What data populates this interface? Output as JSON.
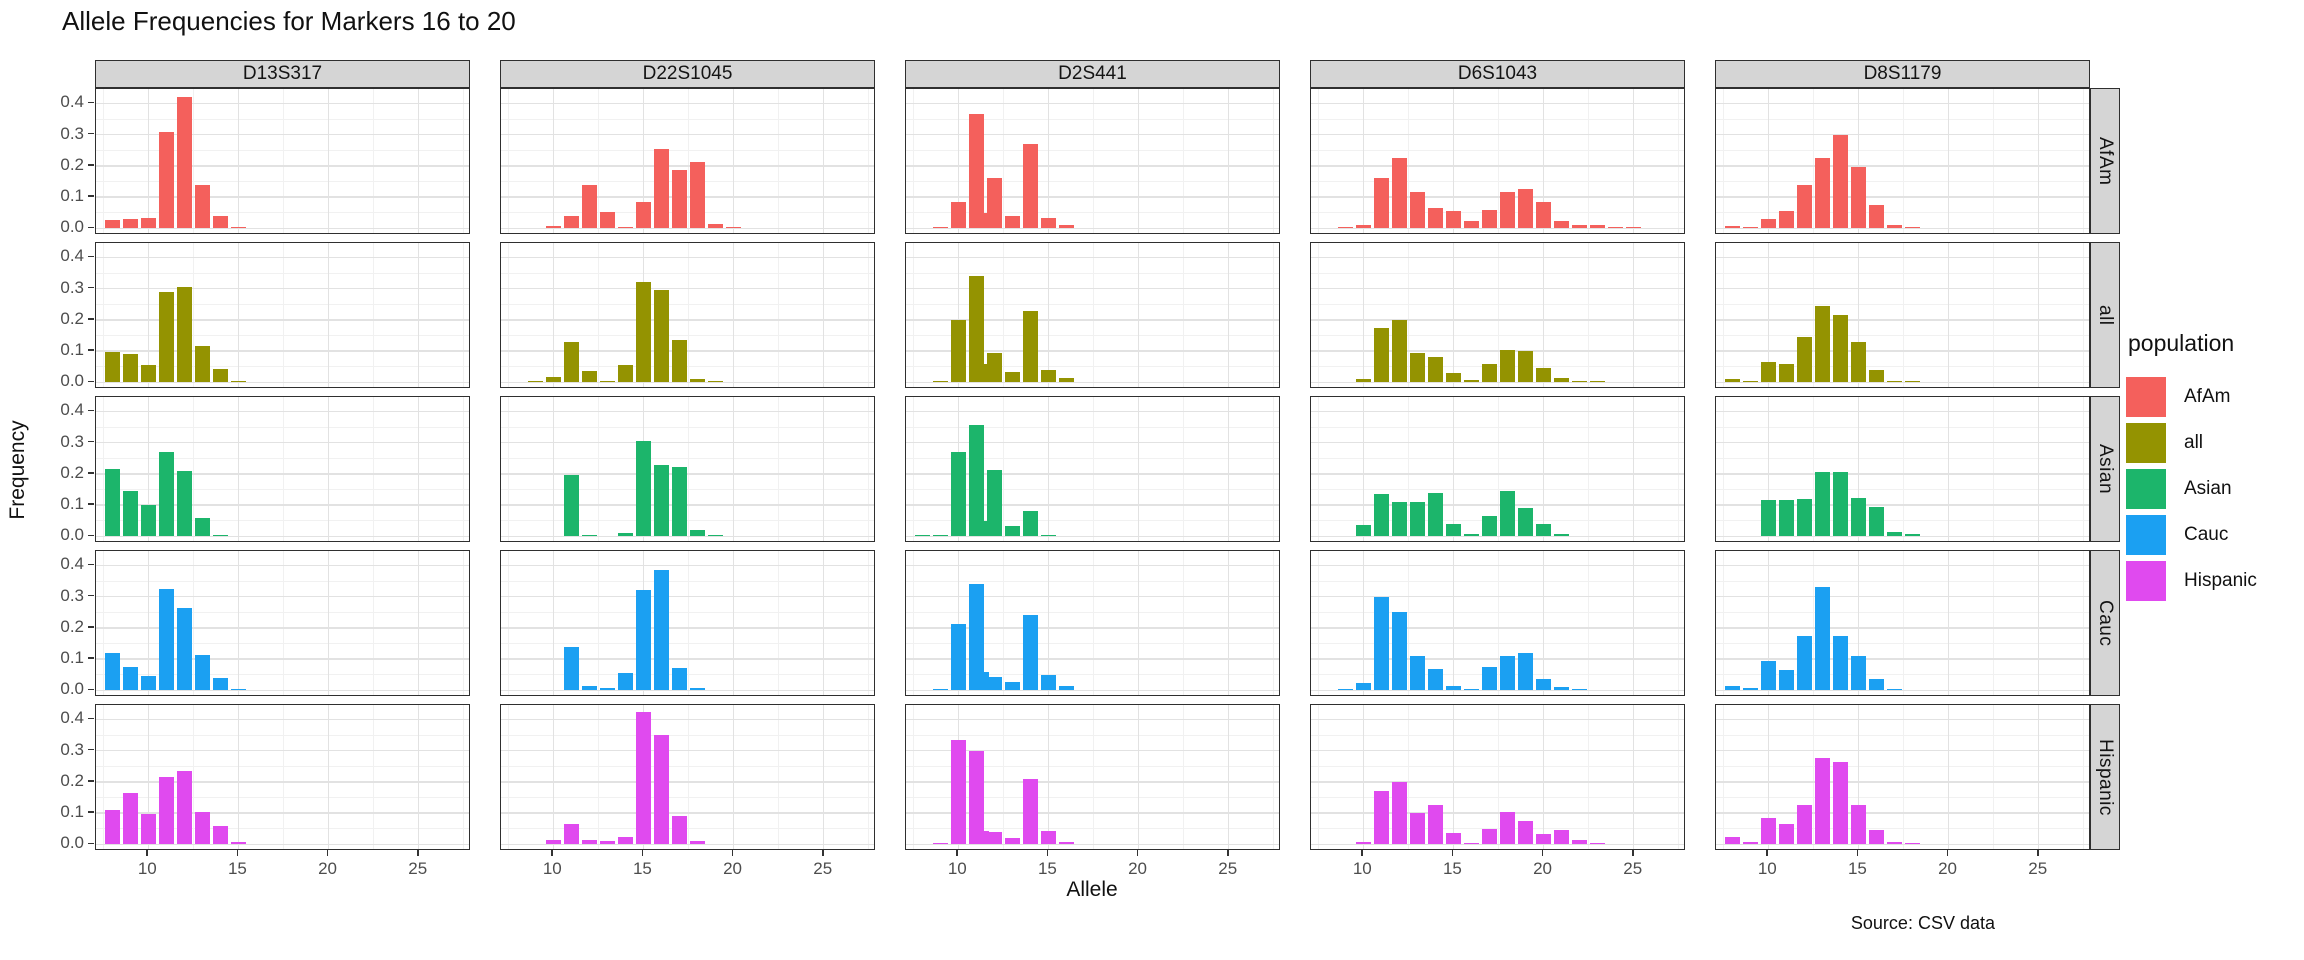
{
  "title": "Allele Frequencies for Markers 16 to 20",
  "caption": "Source: CSV data",
  "axes": {
    "x_label": "Allele",
    "y_label": "Frequency",
    "x_tick_labels": [
      "10",
      "15",
      "20",
      "25"
    ],
    "y_tick_labels": [
      "0.0",
      "0.1",
      "0.2",
      "0.3",
      "0.4"
    ]
  },
  "legend": {
    "title": "population",
    "entries": [
      {
        "label": "AfAm",
        "color": "#f4605c"
      },
      {
        "label": "all",
        "color": "#949301"
      },
      {
        "label": "Asian",
        "color": "#1cb56b"
      },
      {
        "label": "Cauc",
        "color": "#1ba0f2"
      },
      {
        "label": "Hispanic",
        "color": "#e04aef"
      }
    ]
  },
  "chart_data": {
    "type": "bar",
    "title": "Allele Frequencies for Markers 16 to 20",
    "xlabel": "Allele",
    "ylabel": "Frequency",
    "facet_columns": [
      "D13S317",
      "D22S1045",
      "D2S441",
      "D6S1043",
      "D8S1179"
    ],
    "facet_rows": [
      "AfAm",
      "all",
      "Asian",
      "Cauc",
      "Hispanic"
    ],
    "x_ticks": [
      10,
      15,
      20,
      25
    ],
    "x_minor_ticks": [
      7.5,
      12.5,
      17.5,
      22.5,
      27.5
    ],
    "x_domain": [
      7.1,
      27.9
    ],
    "y_ticks": [
      0,
      0.1,
      0.2,
      0.3,
      0.4
    ],
    "y_minor_ticks": [
      0.05,
      0.15,
      0.25,
      0.35,
      0.45
    ],
    "y_domain": [
      -0.021,
      0.446
    ],
    "grid": "major-and-minor",
    "legend_position": "right",
    "bar_width": 0.85,
    "facets": {
      "D13S317": {
        "AfAm": {
          "x": [
            8,
            9,
            10,
            11,
            12,
            13,
            14,
            15
          ],
          "freq": [
            0.026,
            0.03,
            0.033,
            0.31,
            0.42,
            0.14,
            0.041,
            0.002
          ]
        },
        "all": {
          "x": [
            8,
            9,
            10,
            11,
            12,
            13,
            14,
            15
          ],
          "freq": [
            0.097,
            0.09,
            0.056,
            0.29,
            0.305,
            0.115,
            0.042,
            0.003
          ]
        },
        "Asian": {
          "x": [
            8,
            9,
            10,
            11,
            12,
            13,
            14
          ],
          "freq": [
            0.215,
            0.145,
            0.1,
            0.27,
            0.21,
            0.058,
            0.002
          ]
        },
        "Cauc": {
          "x": [
            8,
            9,
            10,
            11,
            12,
            13,
            14,
            15
          ],
          "freq": [
            0.12,
            0.075,
            0.045,
            0.325,
            0.265,
            0.112,
            0.04,
            0.003
          ]
        },
        "Hispanic": {
          "x": [
            8,
            9,
            10,
            11,
            12,
            13,
            14,
            15
          ],
          "freq": [
            0.11,
            0.165,
            0.098,
            0.215,
            0.235,
            0.105,
            0.06,
            0.008
          ]
        }
      },
      "D22S1045": {
        "AfAm": {
          "x": [
            10,
            11,
            12,
            13,
            14,
            15,
            16,
            17,
            18,
            19,
            20
          ],
          "freq": [
            0.009,
            0.04,
            0.14,
            0.052,
            0.006,
            0.084,
            0.254,
            0.188,
            0.211,
            0.015,
            0.003
          ]
        },
        "all": {
          "x": [
            9,
            10,
            11,
            12,
            13,
            14,
            15,
            16,
            17,
            18,
            19
          ],
          "freq": [
            0.004,
            0.018,
            0.13,
            0.035,
            0.006,
            0.055,
            0.32,
            0.295,
            0.135,
            0.012,
            0.005
          ]
        },
        "Asian": {
          "x": [
            11,
            12,
            14,
            15,
            16,
            17,
            18,
            19
          ],
          "freq": [
            0.198,
            0.006,
            0.012,
            0.305,
            0.23,
            0.221,
            0.021,
            0.006
          ]
        },
        "Cauc": {
          "x": [
            11,
            12,
            13,
            14,
            15,
            16,
            17,
            18
          ],
          "freq": [
            0.139,
            0.015,
            0.008,
            0.055,
            0.32,
            0.385,
            0.073,
            0.008
          ]
        },
        "Hispanic": {
          "x": [
            10,
            11,
            12,
            13,
            14,
            15,
            16,
            17,
            18
          ],
          "freq": [
            0.015,
            0.066,
            0.013,
            0.01,
            0.025,
            0.425,
            0.35,
            0.09,
            0.01
          ]
        }
      },
      "D2S441": {
        "AfAm": {
          "x": [
            9,
            10,
            11,
            11.3,
            12,
            13,
            14,
            15,
            16
          ],
          "freq": [
            0.005,
            0.085,
            0.365,
            0.05,
            0.16,
            0.04,
            0.27,
            0.032,
            0.012
          ]
        },
        "all": {
          "x": [
            9,
            10,
            11,
            11.3,
            12,
            13,
            14,
            15,
            16
          ],
          "freq": [
            0.004,
            0.2,
            0.34,
            0.06,
            0.095,
            0.033,
            0.228,
            0.04,
            0.014
          ]
        },
        "Asian": {
          "x": [
            8,
            9,
            10,
            11,
            11.3,
            12,
            13,
            14,
            15
          ],
          "freq": [
            0.004,
            0.006,
            0.27,
            0.355,
            0.048,
            0.214,
            0.033,
            0.082,
            0.005
          ]
        },
        "Cauc": {
          "x": [
            9,
            10,
            11,
            11.3,
            12,
            13,
            14,
            15,
            16
          ],
          "freq": [
            0.003,
            0.212,
            0.342,
            0.058,
            0.043,
            0.027,
            0.24,
            0.05,
            0.013
          ]
        },
        "Hispanic": {
          "x": [
            9,
            10,
            11,
            11.3,
            12,
            13,
            14,
            15,
            16
          ],
          "freq": [
            0.003,
            0.335,
            0.3,
            0.042,
            0.041,
            0.019,
            0.21,
            0.044,
            0.008
          ]
        }
      },
      "D6S1043": {
        "AfAm": {
          "x": [
            9,
            10,
            11,
            12,
            13,
            14,
            15,
            16,
            17,
            18,
            19,
            20,
            21,
            22,
            23,
            24,
            25
          ],
          "freq": [
            0.005,
            0.01,
            0.16,
            0.225,
            0.115,
            0.065,
            0.055,
            0.025,
            0.06,
            0.115,
            0.125,
            0.085,
            0.025,
            0.012,
            0.01,
            0.005,
            0.004
          ]
        },
        "all": {
          "x": [
            10,
            11,
            12,
            13,
            14,
            15,
            16,
            17,
            18,
            19,
            20,
            21,
            22,
            23
          ],
          "freq": [
            0.012,
            0.175,
            0.2,
            0.095,
            0.08,
            0.03,
            0.008,
            0.06,
            0.105,
            0.1,
            0.045,
            0.013,
            0.005,
            0.003
          ]
        },
        "Asian": {
          "x": [
            10,
            11,
            12,
            13,
            14,
            15,
            16,
            17,
            18,
            19,
            20,
            21
          ],
          "freq": [
            0.035,
            0.135,
            0.11,
            0.11,
            0.14,
            0.04,
            0.008,
            0.065,
            0.145,
            0.09,
            0.04,
            0.008
          ]
        },
        "Cauc": {
          "x": [
            9,
            10,
            11,
            12,
            13,
            14,
            15,
            16,
            17,
            18,
            19,
            20,
            21,
            22
          ],
          "freq": [
            0.005,
            0.025,
            0.3,
            0.25,
            0.11,
            0.07,
            0.015,
            0.005,
            0.075,
            0.11,
            0.12,
            0.035,
            0.012,
            0.005
          ]
        },
        "Hispanic": {
          "x": [
            10,
            11,
            12,
            13,
            14,
            15,
            16,
            17,
            18,
            19,
            20,
            21,
            22,
            23
          ],
          "freq": [
            0.008,
            0.17,
            0.2,
            0.1,
            0.125,
            0.035,
            0.005,
            0.05,
            0.105,
            0.075,
            0.033,
            0.045,
            0.015,
            0.005
          ]
        }
      },
      "D8S1179": {
        "AfAm": {
          "x": [
            8,
            9,
            10,
            11,
            12,
            13,
            14,
            15,
            16,
            17,
            18
          ],
          "freq": [
            0.008,
            0.005,
            0.03,
            0.055,
            0.14,
            0.225,
            0.3,
            0.195,
            0.075,
            0.012,
            0.003
          ]
        },
        "all": {
          "x": [
            8,
            9,
            10,
            11,
            12,
            13,
            14,
            15,
            16,
            17,
            18
          ],
          "freq": [
            0.012,
            0.004,
            0.065,
            0.058,
            0.145,
            0.245,
            0.215,
            0.13,
            0.04,
            0.006,
            0.003
          ]
        },
        "Asian": {
          "x": [
            10,
            11,
            12,
            13,
            14,
            15,
            16,
            17,
            18
          ],
          "freq": [
            0.117,
            0.117,
            0.119,
            0.205,
            0.205,
            0.123,
            0.094,
            0.015,
            0.007
          ]
        },
        "Cauc": {
          "x": [
            8,
            9,
            10,
            11,
            12,
            13,
            14,
            15,
            16,
            17
          ],
          "freq": [
            0.015,
            0.008,
            0.095,
            0.065,
            0.175,
            0.33,
            0.175,
            0.11,
            0.035,
            0.006
          ]
        },
        "Hispanic": {
          "x": [
            8,
            9,
            10,
            11,
            12,
            13,
            14,
            15,
            16,
            17,
            18
          ],
          "freq": [
            0.025,
            0.008,
            0.086,
            0.065,
            0.125,
            0.275,
            0.265,
            0.125,
            0.045,
            0.008,
            0.005
          ]
        }
      }
    }
  }
}
